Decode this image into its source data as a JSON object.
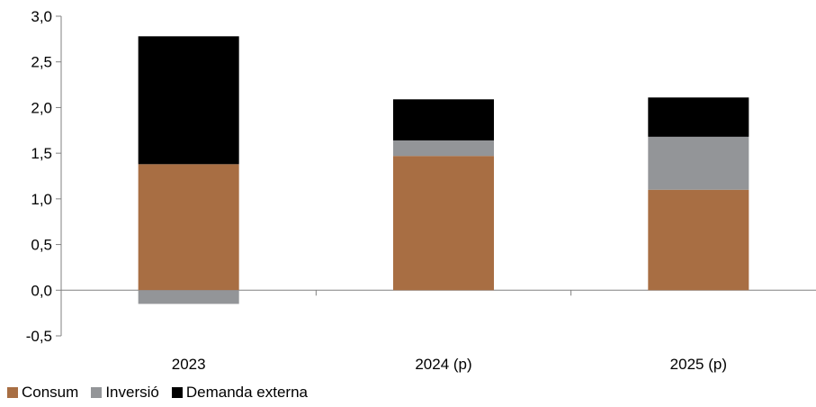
{
  "chart_data": {
    "type": "bar",
    "stacked": true,
    "categories": [
      "2023",
      "2024 (p)",
      "2025 (p)"
    ],
    "series": [
      {
        "name": "Consum",
        "color": "#A86E43",
        "values": [
          1.38,
          1.47,
          1.1
        ]
      },
      {
        "name": "Inversió",
        "color": "#939598",
        "values": [
          -0.15,
          0.17,
          0.58
        ]
      },
      {
        "name": "Demanda externa",
        "color": "#000000",
        "values": [
          1.4,
          0.45,
          0.43
        ]
      }
    ],
    "yticks": [
      "3,0",
      "2,5",
      "2,0",
      "1,5",
      "1,0",
      "0,5",
      "0,0",
      "-0,5"
    ],
    "ylim": [
      -0.5,
      3.0
    ],
    "grid": false,
    "legend_position": "bottom-left"
  }
}
